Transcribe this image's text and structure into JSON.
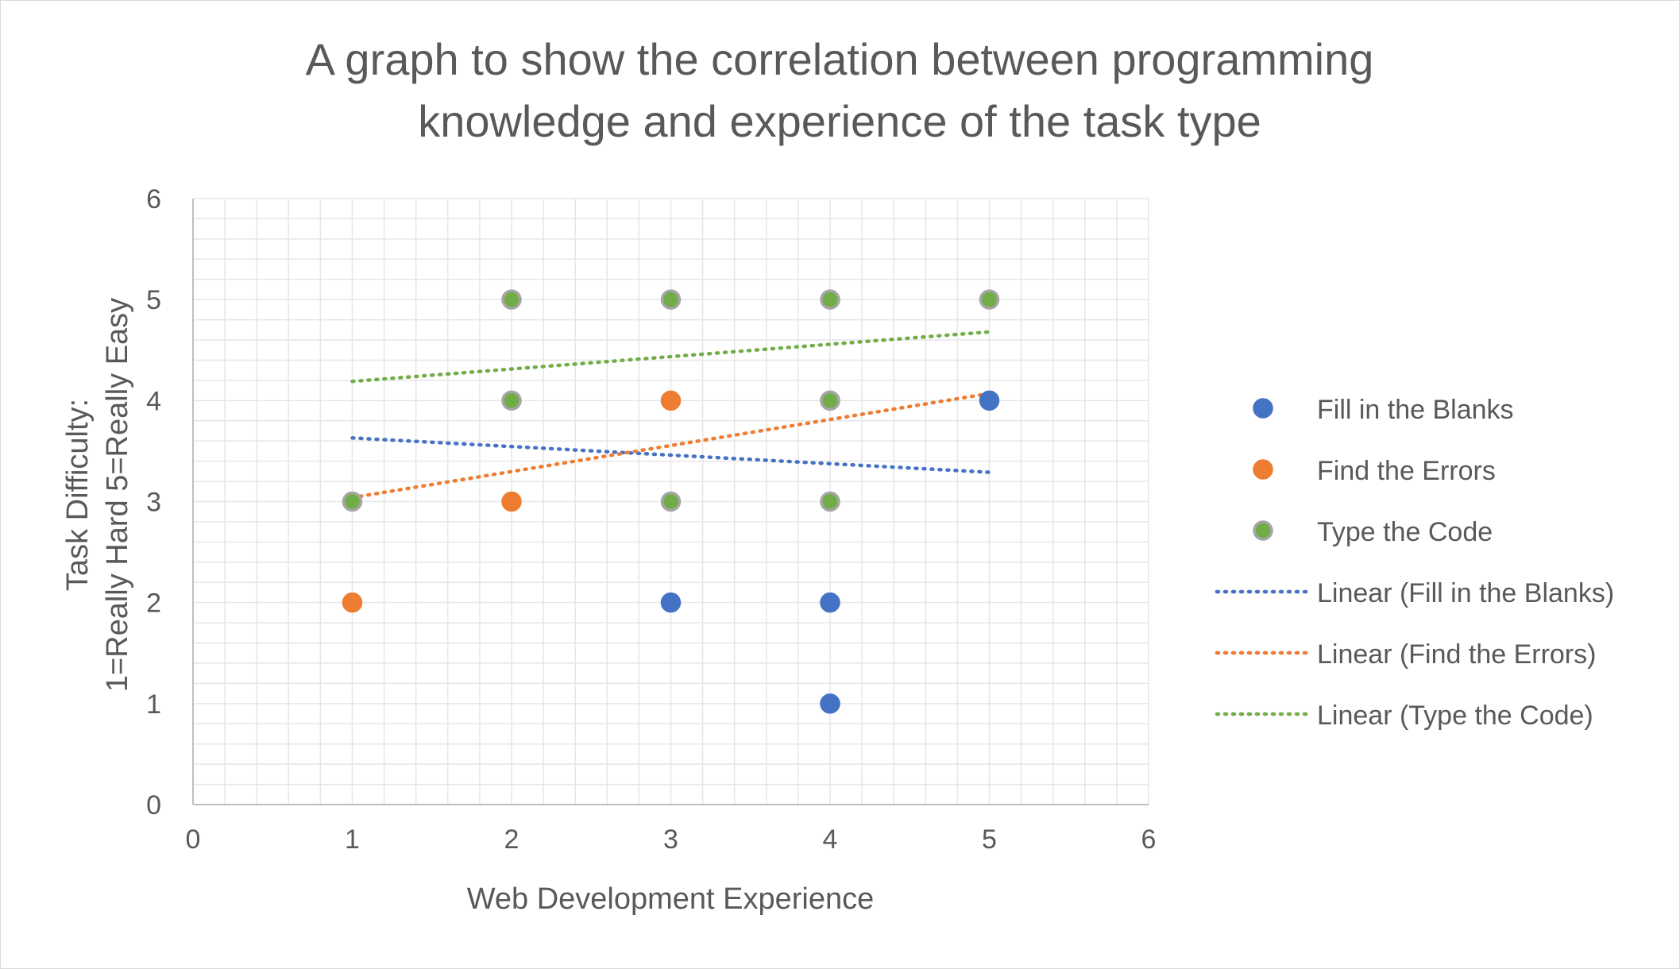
{
  "chart_data": {
    "type": "scatter",
    "title_lines": [
      "A graph to show the correlation between programming",
      "knowledge and experience of the task type"
    ],
    "xlabel": "Web Development Experience",
    "ylabel_lines": [
      "Task Difficulty:",
      "1=Really Hard 5=Really Easy"
    ],
    "xlim": [
      0,
      6
    ],
    "ylim": [
      0,
      6
    ],
    "x_ticks": [
      "0",
      "1",
      "2",
      "3",
      "4",
      "5",
      "6"
    ],
    "y_ticks": [
      "0",
      "1",
      "2",
      "3",
      "4",
      "5",
      "6"
    ],
    "grid": true,
    "minor_grid_step": 0.2,
    "legend_position": "right",
    "series": [
      {
        "name": "Fill in the Blanks",
        "color": "#4472c4",
        "outline": "#4472c4",
        "points": [
          [
            3,
            2
          ],
          [
            4,
            2
          ],
          [
            4,
            1
          ],
          [
            5,
            4
          ]
        ]
      },
      {
        "name": "Find the Errors",
        "color": "#ed7d31",
        "outline": "#ed7d31",
        "points": [
          [
            1,
            2
          ],
          [
            2,
            3
          ],
          [
            3,
            4
          ],
          [
            4,
            4
          ]
        ]
      },
      {
        "name": "Type the Code",
        "color": "#70ad47",
        "outline": "#a5a5a5",
        "points": [
          [
            1,
            3
          ],
          [
            2,
            5
          ],
          [
            2,
            4
          ],
          [
            3,
            5
          ],
          [
            3,
            3
          ],
          [
            4,
            5
          ],
          [
            4,
            4
          ],
          [
            4,
            3
          ],
          [
            5,
            5
          ]
        ]
      }
    ],
    "trendlines": [
      {
        "name": "Linear (Fill in the Blanks)",
        "color": "#4472c4",
        "x": [
          1,
          5
        ],
        "y": [
          3.63,
          3.29
        ]
      },
      {
        "name": "Linear (Find the Errors)",
        "color": "#ed7d31",
        "x": [
          1,
          5
        ],
        "y": [
          3.04,
          4.07
        ]
      },
      {
        "name": "Linear (Type the Code)",
        "color": "#70ad47",
        "x": [
          1,
          5
        ],
        "y": [
          4.19,
          4.68
        ]
      }
    ],
    "text_color": "#595959",
    "axis_color": "#bfbfbf",
    "grid_color": "#e6e6e6"
  }
}
